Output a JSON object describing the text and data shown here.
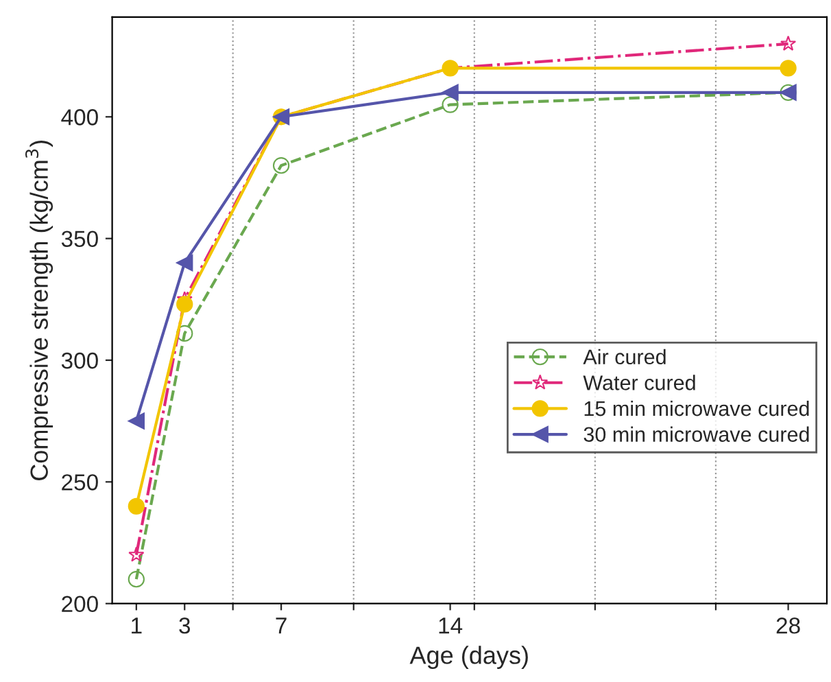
{
  "chart_data": {
    "type": "line",
    "xlabel": "Age (days)",
    "ylabel": "Compressive strength (kg/cm$^{3}$)",
    "xlim": [
      0,
      29.6
    ],
    "ylim": [
      200,
      441
    ],
    "xticks": [
      {
        "value": 1,
        "label": "1"
      },
      {
        "value": 3,
        "label": "3"
      },
      {
        "value": 5,
        "label": null
      },
      {
        "value": 7,
        "label": "7"
      },
      {
        "value": 10,
        "label": null
      },
      {
        "value": 14,
        "label": "14"
      },
      {
        "value": 15,
        "label": null
      },
      {
        "value": 20,
        "label": null
      },
      {
        "value": 25,
        "label": null
      },
      {
        "value": 28,
        "label": "28"
      }
    ],
    "yticks": [
      200,
      250,
      300,
      350,
      400
    ],
    "grid": "x",
    "legend": "bottom right",
    "x": [
      1,
      3,
      7,
      14,
      28
    ],
    "series": [
      {
        "name": "Air cured",
        "color": "#6aa84f",
        "values": [
          210,
          311,
          380,
          405,
          410
        ],
        "marker": "circle",
        "line_style": "dashed"
      },
      {
        "name": "Water cured",
        "color": "#e0287a",
        "values": [
          220,
          325,
          400,
          420,
          430
        ],
        "marker": "star",
        "line_style": "dashdot"
      },
      {
        "name": "15 min microwave cured",
        "color": "#f2c500",
        "values": [
          240,
          323,
          400,
          420,
          420
        ],
        "marker": "circle",
        "line_style": "solid"
      },
      {
        "name": "30 min microwave cured",
        "color": "#5555aa",
        "values": [
          275,
          340,
          400,
          410,
          410
        ],
        "marker": "triangle",
        "line_style": "solid"
      }
    ]
  }
}
